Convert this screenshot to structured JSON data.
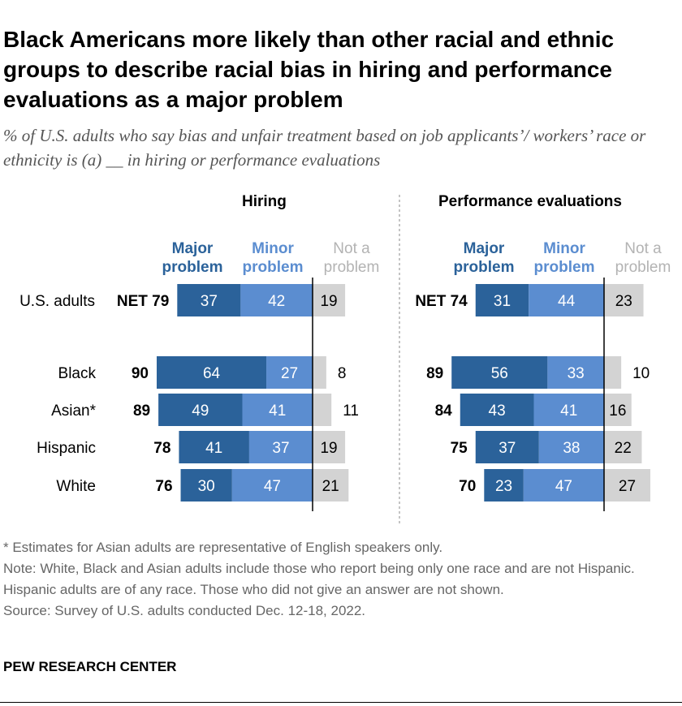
{
  "title": "Black Americans more likely than other racial and ethnic groups to describe racial bias in hiring and performance evaluations as a major problem",
  "subtitle": "% of U.S. adults who say bias and unfair treatment based on job applicants’/ workers’ race or ethnicity is (a) __ in hiring or performance evaluations",
  "colors": {
    "major": "#2b629a",
    "minor": "#5b8dd0",
    "not": "#d3d3d3",
    "major_label": "#2b629a",
    "minor_label": "#5b8dd0",
    "not_label": "#b3b3b3"
  },
  "chart_data": {
    "type": "bar",
    "stacked": "diverging",
    "categories": [
      "U.S. adults",
      "Black",
      "Asian*",
      "Hispanic",
      "White"
    ],
    "legend": [
      "Major problem",
      "Minor problem",
      "Not a problem"
    ],
    "panels": [
      {
        "title": "Hiring",
        "net": [
          "NET 79",
          "90",
          "89",
          "78",
          "76"
        ],
        "series": [
          {
            "name": "Major problem",
            "values": [
              37,
              64,
              49,
              41,
              30
            ]
          },
          {
            "name": "Minor problem",
            "values": [
              42,
              27,
              41,
              37,
              47
            ]
          },
          {
            "name": "Not a problem",
            "values": [
              19,
              8,
              11,
              19,
              21
            ]
          }
        ]
      },
      {
        "title": "Performance evaluations",
        "net": [
          "NET 74",
          "89",
          "84",
          "75",
          "70"
        ],
        "series": [
          {
            "name": "Major problem",
            "values": [
              31,
              56,
              43,
              37,
              23
            ]
          },
          {
            "name": "Minor problem",
            "values": [
              44,
              33,
              41,
              38,
              47
            ]
          },
          {
            "name": "Not a problem",
            "values": [
              23,
              10,
              16,
              22,
              27
            ]
          }
        ]
      }
    ]
  },
  "legend_labels": {
    "major": [
      "Major",
      "problem"
    ],
    "minor": [
      "Minor",
      "problem"
    ],
    "not": [
      "Not a",
      "problem"
    ]
  },
  "footnotes": [
    "* Estimates for Asian adults are representative of English speakers only.",
    "Note: White, Black and Asian adults include those who report being only one race and are not Hispanic. Hispanic adults are of any race. Those who did not give an answer are not shown.",
    "Source: Survey of U.S. adults conducted Dec. 12-18, 2022."
  ],
  "source_org": "PEW RESEARCH CENTER"
}
